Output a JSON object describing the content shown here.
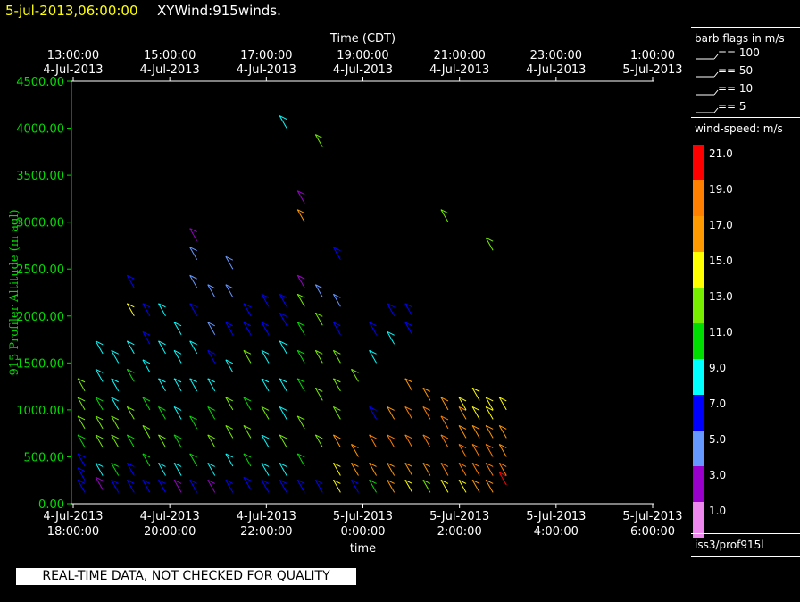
{
  "header": {
    "time": "5-jul-2013,06:00:00",
    "title": "XYWind:915winds."
  },
  "footer_notice": "REAL-TIME DATA, NOT CHECKED FOR QUALITY",
  "legend": {
    "barb_title": "barb flags in m/s",
    "barbs": [
      "== 100",
      "== 50",
      "== 10",
      "== 5"
    ],
    "speed_title": "wind-speed: m/s",
    "speeds": [
      "21.0",
      "19.0",
      "17.0",
      "15.0",
      "13.0",
      "11.0",
      "9.0",
      "7.0",
      "5.0",
      "3.0",
      "1.0"
    ],
    "colors": [
      "#ff0000",
      "#ff8000",
      "#ff9900",
      "#ffff00",
      "#77ee00",
      "#00dd00",
      "#00ffff",
      "#0000ff",
      "#6699ff",
      "#9900cc",
      "#ee88ee"
    ],
    "source": "iss3/prof915l"
  },
  "chart_data": {
    "type": "scatter",
    "top_axis_title": "Time (CDT)",
    "top_ticks": [
      [
        "13:00:00",
        "4-Jul-2013"
      ],
      [
        "15:00:00",
        "4-Jul-2013"
      ],
      [
        "17:00:00",
        "4-Jul-2013"
      ],
      [
        "19:00:00",
        "4-Jul-2013"
      ],
      [
        "21:00:00",
        "4-Jul-2013"
      ],
      [
        "23:00:00",
        "4-Jul-2013"
      ],
      [
        "1:00:00",
        "5-Jul-2013"
      ]
    ],
    "bottom_axis_title": "time",
    "bottom_ticks": [
      [
        "4-Jul-2013",
        "18:00:00"
      ],
      [
        "4-Jul-2013",
        "20:00:00"
      ],
      [
        "4-Jul-2013",
        "22:00:00"
      ],
      [
        "5-Jul-2013",
        "0:00:00"
      ],
      [
        "5-Jul-2013",
        "2:00:00"
      ],
      [
        "5-Jul-2013",
        "4:00:00"
      ],
      [
        "5-Jul-2013",
        "6:00:00"
      ]
    ],
    "x_range_hours_utc": [
      17.2,
      30.2
    ],
    "ylabel": "915 Profiler Altitude (m agl)",
    "ylim": [
      0,
      4500
    ],
    "yticks": [
      "0.00",
      "500.00",
      "1000.00",
      "1500.00",
      "2000.00",
      "2500.00",
      "3000.00",
      "3500.00",
      "4000.00",
      "4500.00"
    ],
    "ytick_values": [
      0,
      500,
      1000,
      1500,
      2000,
      2500,
      3000,
      3500,
      4000,
      4500
    ],
    "grid": false,
    "columns": [
      {
        "t": 17.5,
        "pts": [
          [
            120,
            6
          ],
          [
            250,
            6
          ],
          [
            400,
            7
          ],
          [
            600,
            11
          ],
          [
            800,
            12
          ],
          [
            1000,
            13
          ],
          [
            1200,
            13
          ]
        ]
      },
      {
        "t": 17.9,
        "pts": [
          [
            150,
            3
          ],
          [
            300,
            8
          ],
          [
            600,
            12
          ],
          [
            800,
            12
          ],
          [
            1000,
            11
          ],
          [
            1300,
            9
          ],
          [
            1600,
            9
          ]
        ]
      },
      {
        "t": 18.25,
        "pts": [
          [
            120,
            7
          ],
          [
            300,
            11
          ],
          [
            600,
            13
          ],
          [
            800,
            12
          ],
          [
            1000,
            9
          ],
          [
            1200,
            9
          ],
          [
            1500,
            9
          ]
        ]
      },
      {
        "t": 18.6,
        "pts": [
          [
            120,
            6
          ],
          [
            300,
            7
          ],
          [
            600,
            11
          ],
          [
            900,
            12
          ],
          [
            1300,
            10
          ],
          [
            1600,
            9
          ],
          [
            2000,
            15
          ],
          [
            2300,
            7
          ]
        ]
      },
      {
        "t": 18.95,
        "pts": [
          [
            120,
            6
          ],
          [
            400,
            10
          ],
          [
            700,
            12
          ],
          [
            1000,
            11
          ],
          [
            1400,
            8
          ],
          [
            1700,
            7
          ],
          [
            2000,
            7
          ]
        ]
      },
      {
        "t": 19.3,
        "pts": [
          [
            120,
            7
          ],
          [
            300,
            9
          ],
          [
            600,
            13
          ],
          [
            900,
            11
          ],
          [
            1200,
            9
          ],
          [
            1600,
            9
          ],
          [
            2000,
            9
          ]
        ]
      },
      {
        "t": 19.65,
        "pts": [
          [
            120,
            2
          ],
          [
            300,
            9
          ],
          [
            600,
            11
          ],
          [
            900,
            9
          ],
          [
            1200,
            9
          ],
          [
            1500,
            8
          ],
          [
            1800,
            8
          ]
        ]
      },
      {
        "t": 20.0,
        "pts": [
          [
            120,
            7
          ],
          [
            400,
            10
          ],
          [
            800,
            11
          ],
          [
            1200,
            9
          ],
          [
            1600,
            9
          ],
          [
            2000,
            7
          ],
          [
            2300,
            5
          ],
          [
            2600,
            5
          ],
          [
            2800,
            3
          ]
        ]
      },
      {
        "t": 20.4,
        "pts": [
          [
            120,
            3
          ],
          [
            300,
            9
          ],
          [
            600,
            12
          ],
          [
            900,
            11
          ],
          [
            1200,
            9
          ],
          [
            1500,
            7
          ],
          [
            1800,
            5
          ],
          [
            2200,
            5
          ]
        ]
      },
      {
        "t": 20.8,
        "pts": [
          [
            120,
            7
          ],
          [
            400,
            9
          ],
          [
            700,
            12
          ],
          [
            1000,
            13
          ],
          [
            1400,
            9
          ],
          [
            1800,
            7
          ],
          [
            2200,
            5
          ],
          [
            2500,
            5
          ]
        ]
      },
      {
        "t": 21.2,
        "pts": [
          [
            150,
            7
          ],
          [
            400,
            11
          ],
          [
            700,
            12
          ],
          [
            1000,
            10
          ],
          [
            1500,
            12
          ],
          [
            1800,
            7
          ],
          [
            2000,
            7
          ]
        ]
      },
      {
        "t": 21.6,
        "pts": [
          [
            120,
            7
          ],
          [
            300,
            8
          ],
          [
            600,
            9
          ],
          [
            900,
            12
          ],
          [
            1200,
            9
          ],
          [
            1500,
            8
          ],
          [
            1800,
            7
          ],
          [
            2100,
            7
          ]
        ]
      },
      {
        "t": 22.0,
        "pts": [
          [
            120,
            7
          ],
          [
            300,
            9
          ],
          [
            600,
            12
          ],
          [
            900,
            9
          ],
          [
            1200,
            8
          ],
          [
            1600,
            9
          ],
          [
            1900,
            7
          ],
          [
            2100,
            7
          ],
          [
            4000,
            9
          ]
        ]
      },
      {
        "t": 22.4,
        "pts": [
          [
            120,
            7
          ],
          [
            400,
            11
          ],
          [
            800,
            12
          ],
          [
            1200,
            11
          ],
          [
            1500,
            11
          ],
          [
            1800,
            10
          ],
          [
            2100,
            13
          ],
          [
            2300,
            3
          ],
          [
            3000,
            17
          ],
          [
            3200,
            3
          ]
        ]
      },
      {
        "t": 22.8,
        "pts": [
          [
            120,
            7
          ],
          [
            600,
            12
          ],
          [
            1100,
            12
          ],
          [
            1500,
            12
          ],
          [
            1900,
            12
          ],
          [
            2200,
            5
          ],
          [
            3800,
            12
          ]
        ]
      },
      {
        "t": 23.2,
        "pts": [
          [
            120,
            15
          ],
          [
            300,
            15
          ],
          [
            600,
            17
          ],
          [
            900,
            13
          ],
          [
            1200,
            13
          ],
          [
            1500,
            12
          ],
          [
            1800,
            7
          ],
          [
            2100,
            5
          ],
          [
            2600,
            7
          ]
        ]
      },
      {
        "t": 23.6,
        "pts": [
          [
            120,
            7
          ],
          [
            300,
            17
          ],
          [
            500,
            17
          ],
          [
            1300,
            12
          ]
        ]
      },
      {
        "t": 24.0,
        "pts": [
          [
            120,
            11
          ],
          [
            300,
            17
          ],
          [
            600,
            18
          ],
          [
            900,
            7
          ],
          [
            1500,
            9
          ],
          [
            1800,
            7
          ]
        ]
      },
      {
        "t": 24.4,
        "pts": [
          [
            120,
            17
          ],
          [
            300,
            17
          ],
          [
            600,
            18
          ],
          [
            900,
            17
          ],
          [
            1700,
            8
          ],
          [
            2000,
            7
          ]
        ]
      },
      {
        "t": 24.8,
        "pts": [
          [
            120,
            15
          ],
          [
            300,
            17
          ],
          [
            600,
            18
          ],
          [
            900,
            19
          ],
          [
            1200,
            17
          ],
          [
            1800,
            7
          ],
          [
            2000,
            7
          ]
        ]
      },
      {
        "t": 25.2,
        "pts": [
          [
            120,
            13
          ],
          [
            300,
            17
          ],
          [
            600,
            18
          ],
          [
            900,
            18
          ],
          [
            1100,
            17
          ]
        ]
      },
      {
        "t": 25.6,
        "pts": [
          [
            120,
            15
          ],
          [
            300,
            18
          ],
          [
            600,
            18
          ],
          [
            800,
            18
          ],
          [
            1000,
            17
          ],
          [
            3000,
            13
          ]
        ]
      },
      {
        "t": 26.0,
        "pts": [
          [
            120,
            15
          ],
          [
            300,
            18
          ],
          [
            500,
            18
          ],
          [
            700,
            17
          ],
          [
            900,
            17
          ],
          [
            1000,
            15
          ]
        ]
      },
      {
        "t": 26.3,
        "pts": [
          [
            120,
            17
          ],
          [
            300,
            18
          ],
          [
            500,
            18
          ],
          [
            700,
            17
          ],
          [
            900,
            15
          ],
          [
            1100,
            15
          ]
        ]
      },
      {
        "t": 26.6,
        "pts": [
          [
            120,
            17
          ],
          [
            300,
            18
          ],
          [
            500,
            18
          ],
          [
            700,
            17
          ],
          [
            900,
            15
          ],
          [
            1000,
            15
          ],
          [
            2700,
            13
          ]
        ]
      },
      {
        "t": 26.9,
        "pts": [
          [
            200,
            21
          ],
          [
            300,
            19
          ],
          [
            500,
            17
          ],
          [
            700,
            17
          ],
          [
            1000,
            15
          ]
        ]
      }
    ]
  }
}
